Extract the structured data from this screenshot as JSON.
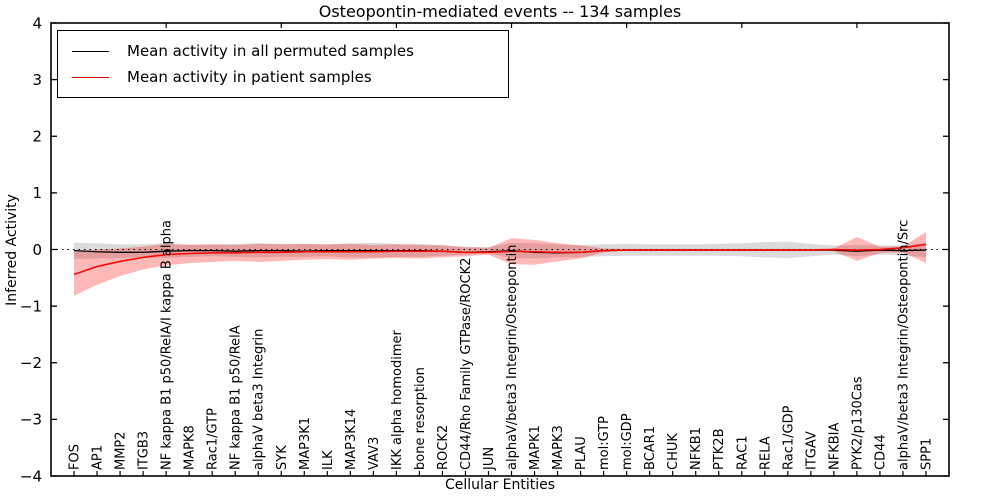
{
  "title": "Osteopontin-mediated events -- 134 samples",
  "legend": {
    "position": "upper left",
    "items": [
      {
        "label": "Mean activity in all permuted samples",
        "color": "#000000"
      },
      {
        "label": "Mean activity in patient samples",
        "color": "#ff0000"
      }
    ]
  },
  "axes": {
    "xlabel": "Cellular Entities",
    "ylabel": "Inferred Activity",
    "ylim": [
      -4,
      4
    ],
    "yticks": [
      4,
      3,
      2,
      1,
      0,
      -1,
      -2,
      -3,
      -4
    ],
    "grid": false,
    "zero_line_style": "dotted",
    "frame_color": "#000000"
  },
  "chart_data": {
    "type": "line",
    "title": "Osteopontin-mediated events -- 134 samples",
    "xlabel": "Cellular Entities",
    "ylabel": "Inferred Activity",
    "ylim": [
      -4,
      4
    ],
    "yticks": [
      4,
      3,
      2,
      1,
      0,
      -1,
      -2,
      -3,
      -4
    ],
    "legend_position": "upper left",
    "grid": false,
    "x_major_tick_indices": [
      4,
      9,
      14,
      19,
      24,
      29,
      34
    ],
    "categories": [
      "FOS",
      "AP1",
      "MMP2",
      "ITGB3",
      "NF kappa B1 p50/RelA/I kappa B alpha",
      "MAPK8",
      "Rac1/GTP",
      "NF kappa B1 p50/RelA",
      "alphaV beta3 Integrin",
      "SYK",
      "MAP3K1",
      "ILK",
      "MAP3K14",
      "VAV3",
      "IKK alpha homodimer",
      "bone resorption",
      "ROCK2",
      "CD44/Rho Family GTPase/ROCK2",
      "JUN",
      "alphaV/beta3 Integrin/Osteopontin",
      "MAPK1",
      "MAPK3",
      "PLAU",
      "mol:GTP",
      "mol:GDP",
      "BCAR1",
      "CHUK",
      "NFKB1",
      "PTK2B",
      "RAC1",
      "RELA",
      "Rac1/GDP",
      "ITGAV",
      "NFKBIA",
      "PYK2/p130Cas",
      "CD44",
      "alphaV/beta3 Integrin/Osteopontin/Src",
      "SPP1"
    ],
    "series": [
      {
        "name": "Mean activity in all permuted samples",
        "color": "#000000",
        "band_alpha": 0.14,
        "line_width": 1.3,
        "values": [
          -0.02,
          -0.04,
          -0.05,
          -0.05,
          -0.03,
          -0.02,
          -0.02,
          -0.03,
          -0.02,
          -0.02,
          -0.03,
          -0.02,
          -0.02,
          -0.02,
          -0.02,
          -0.02,
          -0.03,
          -0.05,
          -0.04,
          -0.02,
          -0.05,
          -0.06,
          -0.05,
          -0.02,
          -0.01,
          -0.01,
          -0.01,
          -0.01,
          -0.01,
          -0.01,
          -0.01,
          -0.01,
          -0.01,
          -0.01,
          -0.03,
          -0.01,
          -0.02,
          -0.01
        ],
        "band_upper": [
          0.12,
          0.11,
          0.09,
          0.09,
          0.11,
          0.09,
          0.09,
          0.1,
          0.11,
          0.1,
          0.1,
          0.09,
          0.11,
          0.12,
          0.1,
          0.1,
          0.08,
          0.05,
          0.04,
          0.12,
          0.11,
          0.09,
          0.08,
          0.09,
          0.1,
          0.09,
          0.09,
          0.09,
          0.1,
          0.11,
          0.13,
          0.14,
          0.1,
          0.07,
          0.08,
          0.07,
          0.07,
          0.12
        ],
        "band_lower": [
          -0.17,
          -0.16,
          -0.15,
          -0.14,
          -0.15,
          -0.13,
          -0.12,
          -0.13,
          -0.14,
          -0.13,
          -0.13,
          -0.12,
          -0.14,
          -0.14,
          -0.13,
          -0.13,
          -0.11,
          -0.09,
          -0.07,
          -0.15,
          -0.16,
          -0.14,
          -0.13,
          -0.12,
          -0.11,
          -0.11,
          -0.11,
          -0.11,
          -0.11,
          -0.12,
          -0.14,
          -0.15,
          -0.12,
          -0.09,
          -0.12,
          -0.09,
          -0.1,
          -0.14
        ]
      },
      {
        "name": "Mean activity in patient samples",
        "color": "#ff0000",
        "band_alpha": 0.28,
        "line_width": 1.5,
        "values": [
          -0.44,
          -0.3,
          -0.21,
          -0.14,
          -0.09,
          -0.07,
          -0.06,
          -0.06,
          -0.05,
          -0.05,
          -0.04,
          -0.04,
          -0.04,
          -0.04,
          -0.03,
          -0.03,
          -0.03,
          -0.05,
          -0.05,
          -0.03,
          -0.04,
          -0.05,
          -0.05,
          -0.02,
          -0.01,
          -0.01,
          -0.01,
          -0.01,
          -0.01,
          -0.01,
          -0.01,
          -0.01,
          -0.01,
          0.0,
          -0.01,
          0.0,
          0.03,
          0.09
        ],
        "band_upper": [
          -0.04,
          0.0,
          0.02,
          0.05,
          0.1,
          0.08,
          0.09,
          0.08,
          0.1,
          0.09,
          0.1,
          0.09,
          0.1,
          0.08,
          0.09,
          0.08,
          0.07,
          0.04,
          0.03,
          0.2,
          0.17,
          0.11,
          0.07,
          0.02,
          0.01,
          0.01,
          0.01,
          0.01,
          0.01,
          0.01,
          0.01,
          0.01,
          0.01,
          0.02,
          0.22,
          0.05,
          0.05,
          0.31
        ],
        "band_lower": [
          -0.82,
          -0.62,
          -0.47,
          -0.35,
          -0.28,
          -0.24,
          -0.22,
          -0.2,
          -0.22,
          -0.2,
          -0.18,
          -0.17,
          -0.18,
          -0.16,
          -0.15,
          -0.16,
          -0.14,
          -0.12,
          -0.09,
          -0.26,
          -0.27,
          -0.21,
          -0.16,
          -0.05,
          -0.02,
          -0.02,
          -0.02,
          -0.02,
          -0.02,
          -0.02,
          -0.02,
          -0.02,
          -0.02,
          -0.03,
          -0.2,
          -0.06,
          -0.05,
          -0.24
        ]
      }
    ]
  }
}
